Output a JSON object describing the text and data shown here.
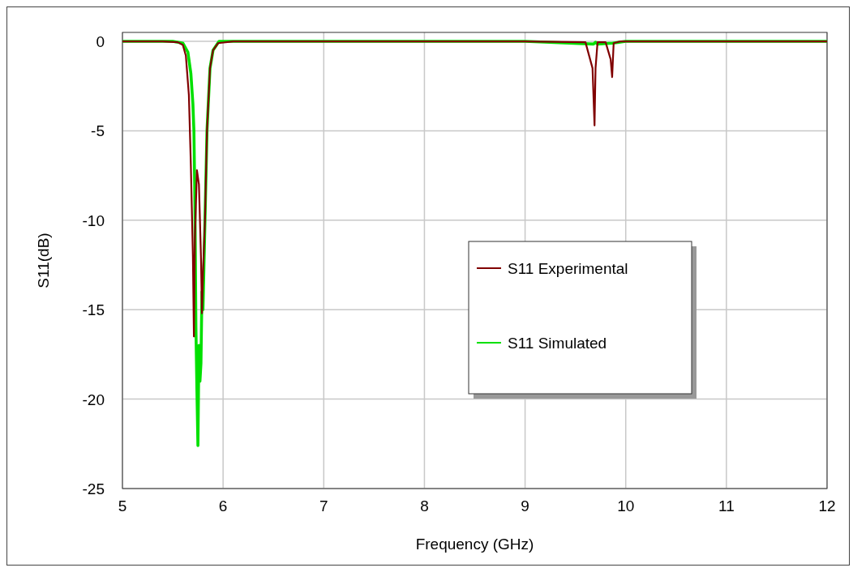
{
  "chart_data": {
    "type": "line",
    "xlabel": "Frequency (GHz)",
    "ylabel": "S11(dB)",
    "xlim": [
      5,
      12
    ],
    "ylim": [
      -25,
      0.5
    ],
    "xticks": [
      5,
      6,
      7,
      8,
      9,
      10,
      11,
      12
    ],
    "yticks": [
      -25,
      -20,
      -15,
      -10,
      -5,
      0
    ],
    "grid": true,
    "legend": "right",
    "line_style": "solid",
    "marker": "none",
    "series": [
      {
        "name": "S11 Experimental",
        "color": "#800000",
        "x": [
          5,
          5.4,
          5.55,
          5.6,
          5.63,
          5.66,
          5.68,
          5.7,
          5.71,
          5.72,
          5.74,
          5.76,
          5.78,
          5.79,
          5.8,
          5.82,
          5.84,
          5.87,
          5.9,
          5.95,
          6.1,
          7,
          8,
          9,
          9.6,
          9.67,
          9.69,
          9.7,
          9.72,
          9.8,
          9.85,
          9.865,
          9.88,
          9.95,
          10.5,
          11,
          12
        ],
        "values": [
          0,
          0,
          -0.05,
          -0.2,
          -0.8,
          -3,
          -7,
          -12,
          -16.5,
          -11,
          -7.2,
          -8,
          -12,
          -15.2,
          -13,
          -10,
          -5,
          -1.5,
          -0.5,
          -0.1,
          0,
          0,
          0,
          0,
          -0.05,
          -1.5,
          -4.7,
          -1.5,
          -0.05,
          -0.05,
          -1,
          -2,
          -0.1,
          0,
          0,
          0,
          0
        ]
      },
      {
        "name": "S11 Simulated",
        "color": "#00e000",
        "x": [
          5,
          5.5,
          5.6,
          5.65,
          5.68,
          5.7,
          5.71,
          5.72,
          5.73,
          5.74,
          5.75,
          5.76,
          5.77,
          5.78,
          5.79,
          5.8,
          5.82,
          5.84,
          5.87,
          5.9,
          5.96,
          6.2,
          7,
          8,
          9,
          9.68,
          9.7,
          9.72,
          9.87,
          10,
          11,
          12
        ],
        "values": [
          0,
          0,
          -0.1,
          -0.6,
          -1.8,
          -3.5,
          -5,
          -9,
          -16,
          -19.5,
          -22.6,
          -17,
          -19,
          -18,
          -14,
          -15,
          -10,
          -5,
          -1.5,
          -0.5,
          0,
          0,
          0,
          0,
          0,
          -0.15,
          -0.05,
          -0.15,
          -0.1,
          0,
          0,
          0
        ]
      }
    ]
  }
}
